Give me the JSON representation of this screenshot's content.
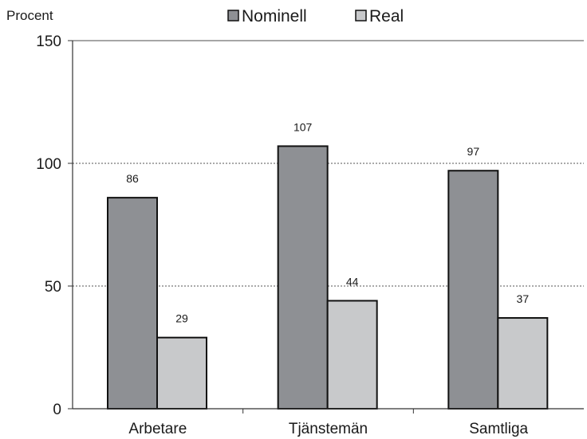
{
  "chart_data": {
    "type": "bar",
    "ylabel": "Procent",
    "categories": [
      "Arbetare",
      "Tjänstemän",
      "Samtliga"
    ],
    "series": [
      {
        "name": "Nominell",
        "values": [
          86,
          107,
          97
        ],
        "color": "#8e9094"
      },
      {
        "name": "Real",
        "values": [
          29,
          44,
          37
        ],
        "color": "#c8c9cb"
      }
    ],
    "ylim": [
      0,
      150
    ],
    "yticks": [
      0,
      50,
      100,
      150
    ],
    "grid": true,
    "legend_position": "top-center"
  }
}
